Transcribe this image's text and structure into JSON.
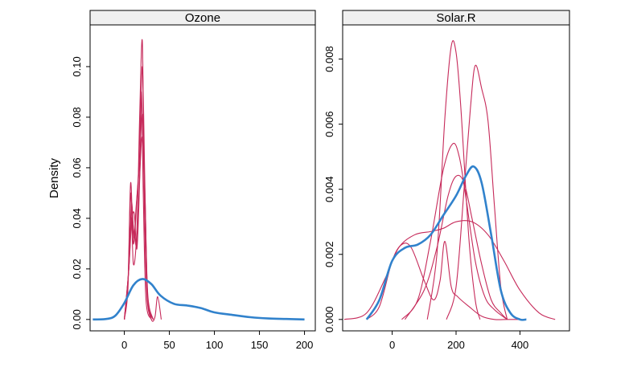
{
  "chart_data": [
    {
      "type": "line",
      "panel_title": "Ozone",
      "ylabel": "Density",
      "xlim": [
        -38,
        212
      ],
      "ylim": [
        -0.0045,
        0.1165
      ],
      "xticks": [
        0,
        50,
        100,
        150,
        200
      ],
      "xtick_labels": [
        "0",
        "50",
        "100",
        "150",
        "200"
      ],
      "yticks": [
        0.0,
        0.02,
        0.04,
        0.06,
        0.08,
        0.1
      ],
      "ytick_labels": [
        "0.00",
        "0.02",
        "0.04",
        "0.06",
        "0.08",
        "0.10"
      ],
      "grid": false,
      "observed": {
        "color": "#3182cc",
        "x": [
          -35,
          -20,
          -10,
          0,
          10,
          20,
          30,
          40,
          55,
          70,
          85,
          100,
          120,
          140,
          160,
          180,
          200
        ],
        "y": [
          0.0,
          0.0002,
          0.0015,
          0.0065,
          0.0135,
          0.016,
          0.014,
          0.0095,
          0.0062,
          0.0055,
          0.0045,
          0.0028,
          0.0018,
          0.0009,
          0.0004,
          0.0002,
          0.0
        ]
      },
      "imputed": {
        "color": "#c62a5a",
        "series": [
          {
            "x": [
              0,
              4,
              7,
              10,
              14,
              17,
              20,
              22,
              25,
              30,
              34,
              37,
              41
            ],
            "y": [
              0.0,
              0.012,
              0.05,
              0.022,
              0.036,
              0.08,
              0.11,
              0.05,
              0.01,
              0.0,
              0.001,
              0.009,
              0.0
            ]
          },
          {
            "x": [
              0,
              4,
              7,
              10,
              13,
              16,
              19,
              21,
              24,
              30
            ],
            "y": [
              0.0,
              0.014,
              0.054,
              0.03,
              0.044,
              0.06,
              0.09,
              0.05,
              0.008,
              0.0
            ]
          },
          {
            "x": [
              0,
              5,
              8,
              11,
              14,
              17,
              20,
              23,
              26,
              32
            ],
            "y": [
              0.0,
              0.02,
              0.046,
              0.032,
              0.048,
              0.062,
              0.081,
              0.048,
              0.01,
              0.0
            ]
          },
          {
            "x": [
              0,
              5,
              8,
              11,
              14,
              17,
              20,
              23,
              26,
              32
            ],
            "y": [
              0.0,
              0.02,
              0.04,
              0.034,
              0.03,
              0.056,
              0.072,
              0.044,
              0.008,
              0.0
            ]
          },
          {
            "x": [
              0,
              5,
              8,
              11,
              14,
              17,
              20,
              23,
              26,
              32
            ],
            "y": [
              0.0,
              0.02,
              0.038,
              0.042,
              0.028,
              0.055,
              0.1,
              0.05,
              0.008,
              0.0
            ]
          }
        ]
      }
    },
    {
      "type": "line",
      "panel_title": "Solar.R",
      "ylabel": "",
      "xlim": [
        -155,
        555
      ],
      "ylim": [
        -0.00035,
        0.00905
      ],
      "xticks": [
        0,
        200,
        400
      ],
      "xtick_labels": [
        "0",
        "200",
        "400"
      ],
      "yticks": [
        0.0,
        0.002,
        0.004,
        0.006,
        0.008
      ],
      "ytick_labels": [
        "0.000",
        "0.002",
        "0.004",
        "0.006",
        "0.008"
      ],
      "grid": false,
      "observed": {
        "color": "#3182cc",
        "x": [
          -80,
          -40,
          0,
          40,
          80,
          120,
          160,
          200,
          230,
          255,
          280,
          310,
          340,
          370,
          400,
          420
        ],
        "y": [
          0.0,
          0.0006,
          0.0018,
          0.0022,
          0.0023,
          0.0026,
          0.0032,
          0.0038,
          0.0044,
          0.0047,
          0.0042,
          0.0026,
          0.0009,
          0.0002,
          0.0,
          0.0
        ]
      },
      "imputed": {
        "color": "#c62a5a",
        "series": [
          {
            "x": [
              -150,
              -80,
              -20,
              20,
              70,
              120,
              160,
              200,
              250,
              300,
              350,
              400,
              460,
              510
            ],
            "y": [
              0.0,
              0.0002,
              0.0013,
              0.0022,
              0.0026,
              0.0027,
              0.0028,
              0.003,
              0.003,
              0.0026,
              0.0018,
              0.0009,
              0.0002,
              0.0
            ]
          },
          {
            "x": [
              -80,
              -40,
              0,
              30,
              60,
              100,
              130,
              150,
              165,
              185,
              205,
              240,
              280,
              320,
              360,
              400
            ],
            "y": [
              0.0,
              0.0004,
              0.0018,
              0.0023,
              0.0022,
              0.0012,
              0.0006,
              0.0012,
              0.0024,
              0.001,
              0.0007,
              0.0004,
              0.0001,
              0.0,
              0.0,
              0.0
            ]
          },
          {
            "x": [
              110,
              140,
              165,
              185,
              200,
              215,
              240,
              260,
              275
            ],
            "y": [
              0.0,
              0.002,
              0.0062,
              0.0084,
              0.0082,
              0.0065,
              0.0025,
              0.0006,
              0.0
            ]
          },
          {
            "x": [
              170,
              200,
              225,
              245,
              260,
              280,
              300,
              320,
              340,
              360
            ],
            "y": [
              0.0,
              0.001,
              0.004,
              0.0065,
              0.0078,
              0.0071,
              0.0061,
              0.0035,
              0.001,
              0.0
            ]
          },
          {
            "x": [
              30,
              80,
              120,
              160,
              190,
              210,
              230,
              260,
              290,
              320,
              360
            ],
            "y": [
              0.0,
              0.0006,
              0.0024,
              0.0046,
              0.0054,
              0.005,
              0.0038,
              0.0018,
              0.0007,
              0.0003,
              0.0
            ]
          },
          {
            "x": [
              40,
              100,
              140,
              175,
              200,
              225,
              250,
              280,
              310,
              340,
              360
            ],
            "y": [
              0.0,
              0.0009,
              0.0022,
              0.0038,
              0.0044,
              0.0042,
              0.0031,
              0.0017,
              0.0006,
              0.0002,
              0.0
            ]
          }
        ]
      }
    }
  ]
}
